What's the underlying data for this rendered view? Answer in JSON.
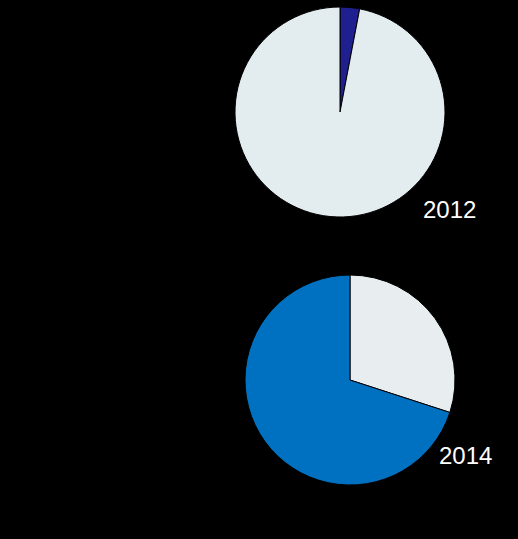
{
  "chart_data": [
    {
      "type": "pie",
      "title": "2012",
      "values": [
        3,
        97
      ],
      "colors": [
        "#1f1f8f",
        "#e3ecef"
      ]
    },
    {
      "type": "pie",
      "title": "2014",
      "values": [
        30,
        70
      ],
      "colors": [
        "#e8eef0",
        "#0070c0"
      ]
    }
  ]
}
